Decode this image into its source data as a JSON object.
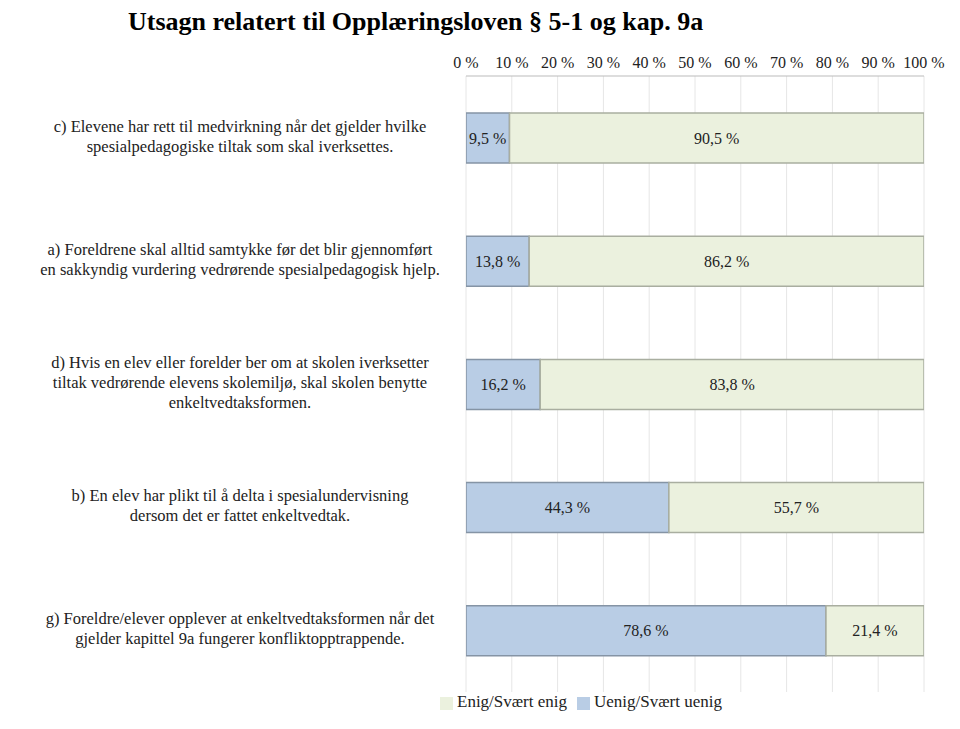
{
  "chart_data": {
    "type": "bar",
    "title": "Utsagn relatert til Opplæringsloven § 5-1 og kap. 9a",
    "orientation": "horizontal",
    "stacked": true,
    "data_labels": true,
    "grid": true,
    "legend": "bottom",
    "categories": [
      "c) Elevene har rett til medvirkning når det gjelder hvilke spesialpedagogiske tiltak som skal iverksettes.",
      "a) Foreldrene skal alltid samtykke før det blir gjennomført en sakkyndig vurdering vedrørende spesialpedagogisk hjelp.",
      "d) Hvis en elev eller forelder ber om at skolen iverksetter tiltak vedrørende elevens skolemiljø, skal skolen benytte enkeltvedtaksformen.",
      "b) En elev har plikt til å delta i spesialundervisning dersom det er fattet enkeltvedtak.",
      "g) Foreldre/elever opplever at enkeltvedtaksformen når det gjelder kapittel 9a fungerer konfliktopptrappende."
    ],
    "series": [
      {
        "name": "Uenig/Svært uenig",
        "color": "#b9cde5",
        "values": [
          9.5,
          13.8,
          16.2,
          44.3,
          78.6
        ],
        "value_labels": [
          "9,5 %",
          "13,8 %",
          "16,2 %",
          "44,3 %",
          "78,6 %"
        ]
      },
      {
        "name": "Enig/Svært enig",
        "color": "#ebf1de",
        "values": [
          90.5,
          86.2,
          83.8,
          55.7,
          21.4
        ],
        "value_labels": [
          "90,5 %",
          "86,2 %",
          "83,8 %",
          "55,7 %",
          "21,4 %"
        ]
      }
    ],
    "xlim": [
      0,
      100
    ],
    "xticks": [
      {
        "value": 0,
        "label": "0 %"
      },
      {
        "value": 10,
        "label": "10 %"
      },
      {
        "value": 20,
        "label": "20 %"
      },
      {
        "value": 30,
        "label": "30 %"
      },
      {
        "value": 40,
        "label": "40 %"
      },
      {
        "value": 50,
        "label": "50 %"
      },
      {
        "value": 60,
        "label": "60 %"
      },
      {
        "value": 70,
        "label": "70 %"
      },
      {
        "value": 80,
        "label": "80 %"
      },
      {
        "value": 90,
        "label": "90 %"
      },
      {
        "value": 100,
        "label": "100 %"
      }
    ]
  }
}
